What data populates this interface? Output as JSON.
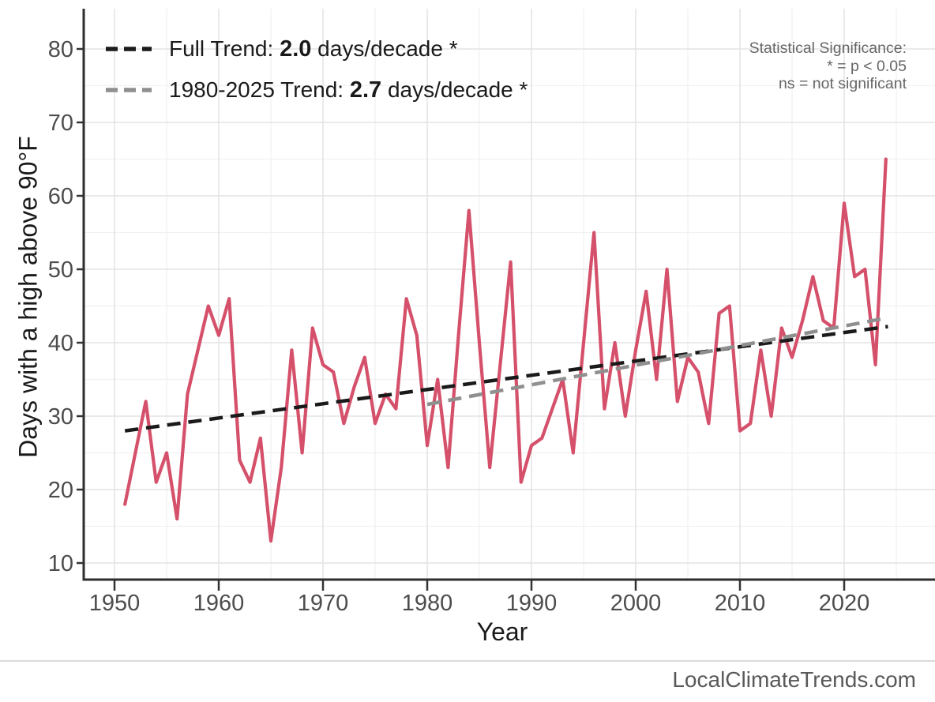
{
  "legend": {
    "items": [
      {
        "label_prefix": "Full Trend: ",
        "value": "2.0",
        "label_suffix": " days/decade *",
        "line_color": "#1a1a1a",
        "line_style": "dashed"
      },
      {
        "label_prefix": "1980-2025 Trend: ",
        "value": "2.7",
        "label_suffix": " days/decade *",
        "line_color": "#8f8f8f",
        "line_style": "dashed"
      }
    ]
  },
  "significance_note": {
    "title": "Statistical Significance:",
    "line1": "* = p < 0.05",
    "line2": "ns = not significant"
  },
  "watermark": "LocalClimateTrends.com",
  "colors": {
    "series": "#d5506a",
    "full_trend": "#1a1a1a",
    "recent_trend": "#8f8f8f",
    "grid_major": "#e4e4e4",
    "grid_minor": "#f1f1f1",
    "axis": "#2e2e2e",
    "tick": "#333333",
    "tick_label": "#4d4d4d"
  },
  "chart_data": {
    "type": "line",
    "title": "",
    "xlabel": "Year",
    "ylabel": "Days with a high above 90°F",
    "x_ticks": [
      1950,
      1960,
      1970,
      1980,
      1990,
      2000,
      2010,
      2020
    ],
    "y_ticks": [
      10,
      20,
      30,
      40,
      50,
      60,
      70,
      80
    ],
    "xlim": [
      1947,
      2026
    ],
    "ylim": [
      7,
      85
    ],
    "grid": "major+minor",
    "legend_position": "top-left",
    "series": [
      {
        "name": "days-above-90-annual",
        "type": "line",
        "color": "#d5506a",
        "x": [
          1951,
          1952,
          1953,
          1954,
          1955,
          1956,
          1957,
          1958,
          1959,
          1960,
          1961,
          1962,
          1963,
          1964,
          1965,
          1966,
          1967,
          1968,
          1969,
          1970,
          1971,
          1972,
          1973,
          1974,
          1975,
          1976,
          1977,
          1978,
          1979,
          1980,
          1981,
          1982,
          1983,
          1984,
          1985,
          1986,
          1987,
          1988,
          1989,
          1990,
          1991,
          1992,
          1993,
          1994,
          1995,
          1996,
          1997,
          1998,
          1999,
          2000,
          2001,
          2002,
          2003,
          2004,
          2005,
          2006,
          2007,
          2008,
          2009,
          2010,
          2011,
          2012,
          2013,
          2014,
          2015,
          2016,
          2017,
          2018,
          2019,
          2020,
          2021,
          2022,
          2023,
          2024
        ],
        "values": [
          18,
          25,
          32,
          21,
          25,
          16,
          33,
          39,
          45,
          41,
          46,
          24,
          21,
          27,
          13,
          23,
          39,
          25,
          42,
          37,
          36,
          29,
          34,
          38,
          29,
          33,
          31,
          46,
          41,
          26,
          35,
          23,
          41,
          58,
          40,
          23,
          37,
          51,
          21,
          26,
          27,
          31,
          35,
          25,
          40,
          55,
          31,
          40,
          30,
          39,
          47,
          35,
          50,
          32,
          38,
          36,
          29,
          44,
          45,
          28,
          29,
          39,
          30,
          42,
          38,
          43,
          49,
          43,
          42,
          59,
          49,
          50,
          37,
          65
        ]
      },
      {
        "name": "full-trend",
        "type": "dashed-line",
        "color": "#1a1a1a",
        "slope_days_per_decade": 2.0,
        "significant": true,
        "x": [
          1951,
          2024.2
        ],
        "values": [
          28,
          42.2
        ]
      },
      {
        "name": "recent-trend-1980-2025",
        "type": "dashed-line",
        "color": "#8f8f8f",
        "slope_days_per_decade": 2.7,
        "significant": true,
        "x": [
          1980,
          2024.2
        ],
        "values": [
          31.6,
          43.4
        ]
      }
    ]
  }
}
